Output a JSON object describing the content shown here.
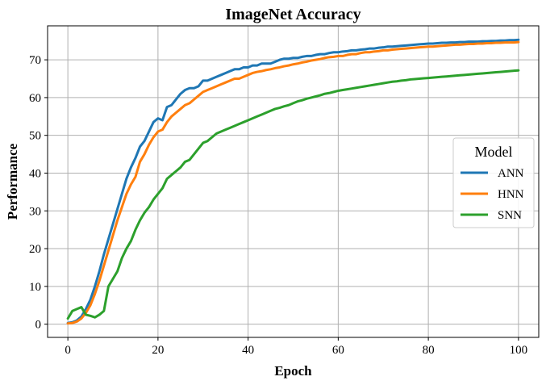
{
  "chart_data": {
    "type": "line",
    "title": "ImageNet Accuracy",
    "xlabel": "Epoch",
    "ylabel": "Performance",
    "xlim": [
      -4.5,
      104.5
    ],
    "ylim": [
      -3.5,
      79
    ],
    "xticks": [
      0,
      20,
      40,
      60,
      80,
      100
    ],
    "yticks": [
      0,
      10,
      20,
      30,
      40,
      50,
      60,
      70
    ],
    "grid": true,
    "legend": {
      "title": "Model",
      "placement": "center-right"
    },
    "series": [
      {
        "name": "ANN",
        "color": "#1f77b4",
        "x": [
          0,
          1,
          2,
          3,
          4,
          5,
          6,
          7,
          8,
          9,
          10,
          11,
          12,
          13,
          14,
          15,
          16,
          17,
          18,
          19,
          20,
          21,
          22,
          23,
          24,
          25,
          26,
          27,
          28,
          29,
          30,
          31,
          32,
          33,
          34,
          35,
          36,
          37,
          38,
          39,
          40,
          41,
          42,
          43,
          44,
          45,
          46,
          47,
          48,
          49,
          50,
          51,
          52,
          53,
          54,
          55,
          56,
          57,
          58,
          59,
          60,
          61,
          62,
          63,
          64,
          65,
          66,
          67,
          68,
          69,
          70,
          71,
          72,
          73,
          74,
          75,
          76,
          77,
          78,
          79,
          80,
          81,
          82,
          83,
          84,
          85,
          86,
          87,
          88,
          89,
          90,
          91,
          92,
          93,
          94,
          95,
          96,
          97,
          98,
          99,
          100
        ],
        "y": [
          0.3,
          0.5,
          1.0,
          2.0,
          4.0,
          6.5,
          10.0,
          14.0,
          18.5,
          22.5,
          26.5,
          30.5,
          34.5,
          38.5,
          41.5,
          44.0,
          47.0,
          48.5,
          51.0,
          53.5,
          54.5,
          54.0,
          57.5,
          58.0,
          59.5,
          61.0,
          62.0,
          62.5,
          62.5,
          63.0,
          64.5,
          64.5,
          65.0,
          65.5,
          66.0,
          66.5,
          67.0,
          67.5,
          67.5,
          68.0,
          68.0,
          68.5,
          68.5,
          69.0,
          69.0,
          69.0,
          69.5,
          70.0,
          70.3,
          70.3,
          70.5,
          70.5,
          70.8,
          71.0,
          71.0,
          71.3,
          71.5,
          71.5,
          71.8,
          72.0,
          72.0,
          72.2,
          72.3,
          72.5,
          72.5,
          72.7,
          72.8,
          73.0,
          73.0,
          73.2,
          73.3,
          73.5,
          73.5,
          73.6,
          73.7,
          73.8,
          73.9,
          74.0,
          74.1,
          74.2,
          74.3,
          74.3,
          74.4,
          74.5,
          74.5,
          74.6,
          74.6,
          74.7,
          74.7,
          74.8,
          74.8,
          74.8,
          74.9,
          74.9,
          75.0,
          75.0,
          75.1,
          75.1,
          75.2,
          75.2,
          75.3
        ]
      },
      {
        "name": "HNN",
        "color": "#ff7f0e",
        "x": [
          0,
          1,
          2,
          3,
          4,
          5,
          6,
          7,
          8,
          9,
          10,
          11,
          12,
          13,
          14,
          15,
          16,
          17,
          18,
          19,
          20,
          21,
          22,
          23,
          24,
          25,
          26,
          27,
          28,
          29,
          30,
          31,
          32,
          33,
          34,
          35,
          36,
          37,
          38,
          39,
          40,
          41,
          42,
          43,
          44,
          45,
          46,
          47,
          48,
          49,
          50,
          51,
          52,
          53,
          54,
          55,
          56,
          57,
          58,
          59,
          60,
          61,
          62,
          63,
          64,
          65,
          66,
          67,
          68,
          69,
          70,
          71,
          72,
          73,
          74,
          75,
          76,
          77,
          78,
          79,
          80,
          81,
          82,
          83,
          84,
          85,
          86,
          87,
          88,
          89,
          90,
          91,
          92,
          93,
          94,
          95,
          96,
          97,
          98,
          99,
          100
        ],
        "y": [
          0.2,
          0.3,
          0.7,
          1.5,
          3.0,
          5.0,
          8.0,
          11.5,
          15.5,
          19.5,
          23.5,
          27.5,
          31.0,
          34.5,
          37.0,
          39.0,
          43.0,
          45.0,
          47.5,
          49.5,
          51.0,
          51.5,
          53.5,
          55.0,
          56.0,
          57.0,
          58.0,
          58.5,
          59.5,
          60.5,
          61.5,
          62.0,
          62.5,
          63.0,
          63.5,
          64.0,
          64.5,
          65.0,
          65.0,
          65.5,
          66.0,
          66.5,
          66.8,
          67.0,
          67.3,
          67.5,
          67.8,
          68.0,
          68.3,
          68.5,
          68.8,
          69.0,
          69.3,
          69.5,
          69.8,
          70.0,
          70.2,
          70.5,
          70.7,
          70.8,
          71.0,
          71.0,
          71.3,
          71.5,
          71.5,
          71.8,
          72.0,
          72.0,
          72.2,
          72.3,
          72.5,
          72.5,
          72.7,
          72.8,
          72.9,
          73.0,
          73.1,
          73.2,
          73.3,
          73.4,
          73.5,
          73.5,
          73.6,
          73.7,
          73.8,
          73.9,
          74.0,
          74.0,
          74.1,
          74.2,
          74.2,
          74.3,
          74.3,
          74.4,
          74.4,
          74.5,
          74.5,
          74.6,
          74.6,
          74.6,
          74.7
        ]
      },
      {
        "name": "SNN",
        "color": "#2ca02c",
        "x": [
          0,
          1,
          2,
          3,
          4,
          5,
          6,
          7,
          8,
          9,
          10,
          11,
          12,
          13,
          14,
          15,
          16,
          17,
          18,
          19,
          20,
          21,
          22,
          23,
          24,
          25,
          26,
          27,
          28,
          29,
          30,
          31,
          32,
          33,
          34,
          35,
          36,
          37,
          38,
          39,
          40,
          41,
          42,
          43,
          44,
          45,
          46,
          47,
          48,
          49,
          50,
          51,
          52,
          53,
          54,
          55,
          56,
          57,
          58,
          59,
          60,
          61,
          62,
          63,
          64,
          65,
          66,
          67,
          68,
          69,
          70,
          71,
          72,
          73,
          74,
          75,
          76,
          77,
          78,
          79,
          80,
          81,
          82,
          83,
          84,
          85,
          86,
          87,
          88,
          89,
          90,
          91,
          92,
          93,
          94,
          95,
          96,
          97,
          98,
          99,
          100
        ],
        "y": [
          1.5,
          3.5,
          4.0,
          4.5,
          2.5,
          2.2,
          1.8,
          2.5,
          3.5,
          10.0,
          12.0,
          14.0,
          17.5,
          20.0,
          22.0,
          25.0,
          27.5,
          29.5,
          31.0,
          33.0,
          34.5,
          36.0,
          38.5,
          39.5,
          40.5,
          41.5,
          43.0,
          43.5,
          45.0,
          46.5,
          48.0,
          48.5,
          49.5,
          50.5,
          51.0,
          51.5,
          52.0,
          52.5,
          53.0,
          53.5,
          54.0,
          54.5,
          55.0,
          55.5,
          56.0,
          56.5,
          57.0,
          57.3,
          57.7,
          58.0,
          58.5,
          59.0,
          59.3,
          59.7,
          60.0,
          60.3,
          60.6,
          61.0,
          61.2,
          61.5,
          61.8,
          62.0,
          62.2,
          62.4,
          62.6,
          62.8,
          63.0,
          63.2,
          63.4,
          63.6,
          63.8,
          64.0,
          64.2,
          64.3,
          64.5,
          64.6,
          64.8,
          64.9,
          65.0,
          65.1,
          65.2,
          65.3,
          65.4,
          65.5,
          65.6,
          65.7,
          65.8,
          65.9,
          66.0,
          66.1,
          66.2,
          66.3,
          66.4,
          66.5,
          66.6,
          66.7,
          66.8,
          66.9,
          67.0,
          67.1,
          67.2
        ]
      }
    ]
  }
}
